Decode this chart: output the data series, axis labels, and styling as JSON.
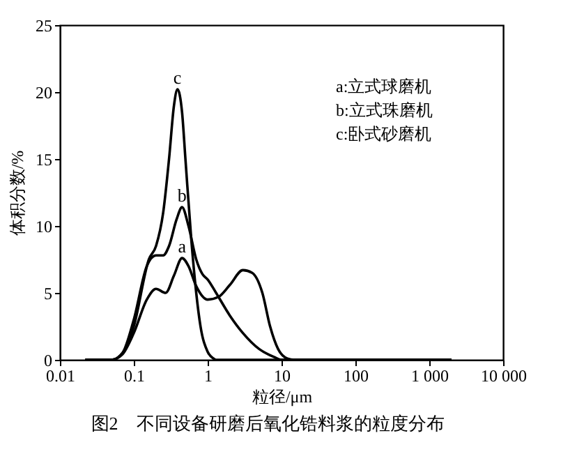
{
  "chart_data": {
    "type": "line",
    "xlabel": "粒径/μm",
    "ylabel": "体积分数/%",
    "log": "x",
    "xlim": [
      0.01,
      10000
    ],
    "ylim": [
      0,
      25
    ],
    "xticks": [
      0.01,
      0.1,
      1,
      10,
      100,
      {
        "value": 1000,
        "label": "1 000"
      },
      {
        "value": 10000,
        "label": "10 000"
      }
    ],
    "yticks": [
      0,
      5,
      10,
      15,
      20,
      25
    ],
    "grid": false,
    "marker": "none",
    "line_style": "solid",
    "series": [
      {
        "name": "a",
        "color": "#000000",
        "x": [
          0.022,
          0.05,
          0.07,
          0.1,
          0.15,
          0.2,
          0.27,
          0.35,
          0.45,
          0.55,
          0.7,
          1.0,
          1.4,
          2,
          3,
          4,
          5.5,
          7,
          9,
          12,
          15,
          2000
        ],
        "values": [
          0,
          0,
          0.4,
          2,
          4.5,
          5.3,
          5.0,
          6.3,
          7.6,
          7.0,
          5.5,
          4.5,
          4.7,
          5.6,
          6.7,
          6.5,
          5,
          2.5,
          0.8,
          0.1,
          0,
          0
        ]
      },
      {
        "name": "b",
        "color": "#000000",
        "x": [
          0.022,
          0.05,
          0.07,
          0.1,
          0.15,
          0.2,
          0.25,
          0.3,
          0.38,
          0.45,
          0.55,
          0.7,
          0.85,
          1.0,
          1.3,
          2,
          3,
          5,
          8,
          10,
          2000
        ],
        "values": [
          0,
          0,
          0.5,
          3,
          7,
          7.8,
          7.8,
          8.5,
          10.5,
          11.4,
          10,
          7.5,
          6.4,
          6.0,
          5,
          3.3,
          2,
          0.8,
          0.2,
          0,
          0
        ]
      },
      {
        "name": "c",
        "color": "#000000",
        "x": [
          0.022,
          0.05,
          0.07,
          0.1,
          0.16,
          0.2,
          0.25,
          0.3,
          0.35,
          0.39,
          0.45,
          0.5,
          0.6,
          0.7,
          0.8,
          1.0,
          1.2,
          1.3,
          2000
        ],
        "values": [
          0,
          0,
          0.5,
          2.5,
          7.5,
          8.5,
          11,
          15,
          19,
          20.2,
          18.5,
          15,
          9,
          5,
          2.5,
          0.6,
          0.1,
          0,
          0
        ]
      }
    ],
    "annotations": [
      "a:立式球磨机",
      "b:立式珠磨机",
      "c:卧式砂磨机",
      "图2　不同设备研磨后氧化锆料浆的粒度分布"
    ]
  }
}
